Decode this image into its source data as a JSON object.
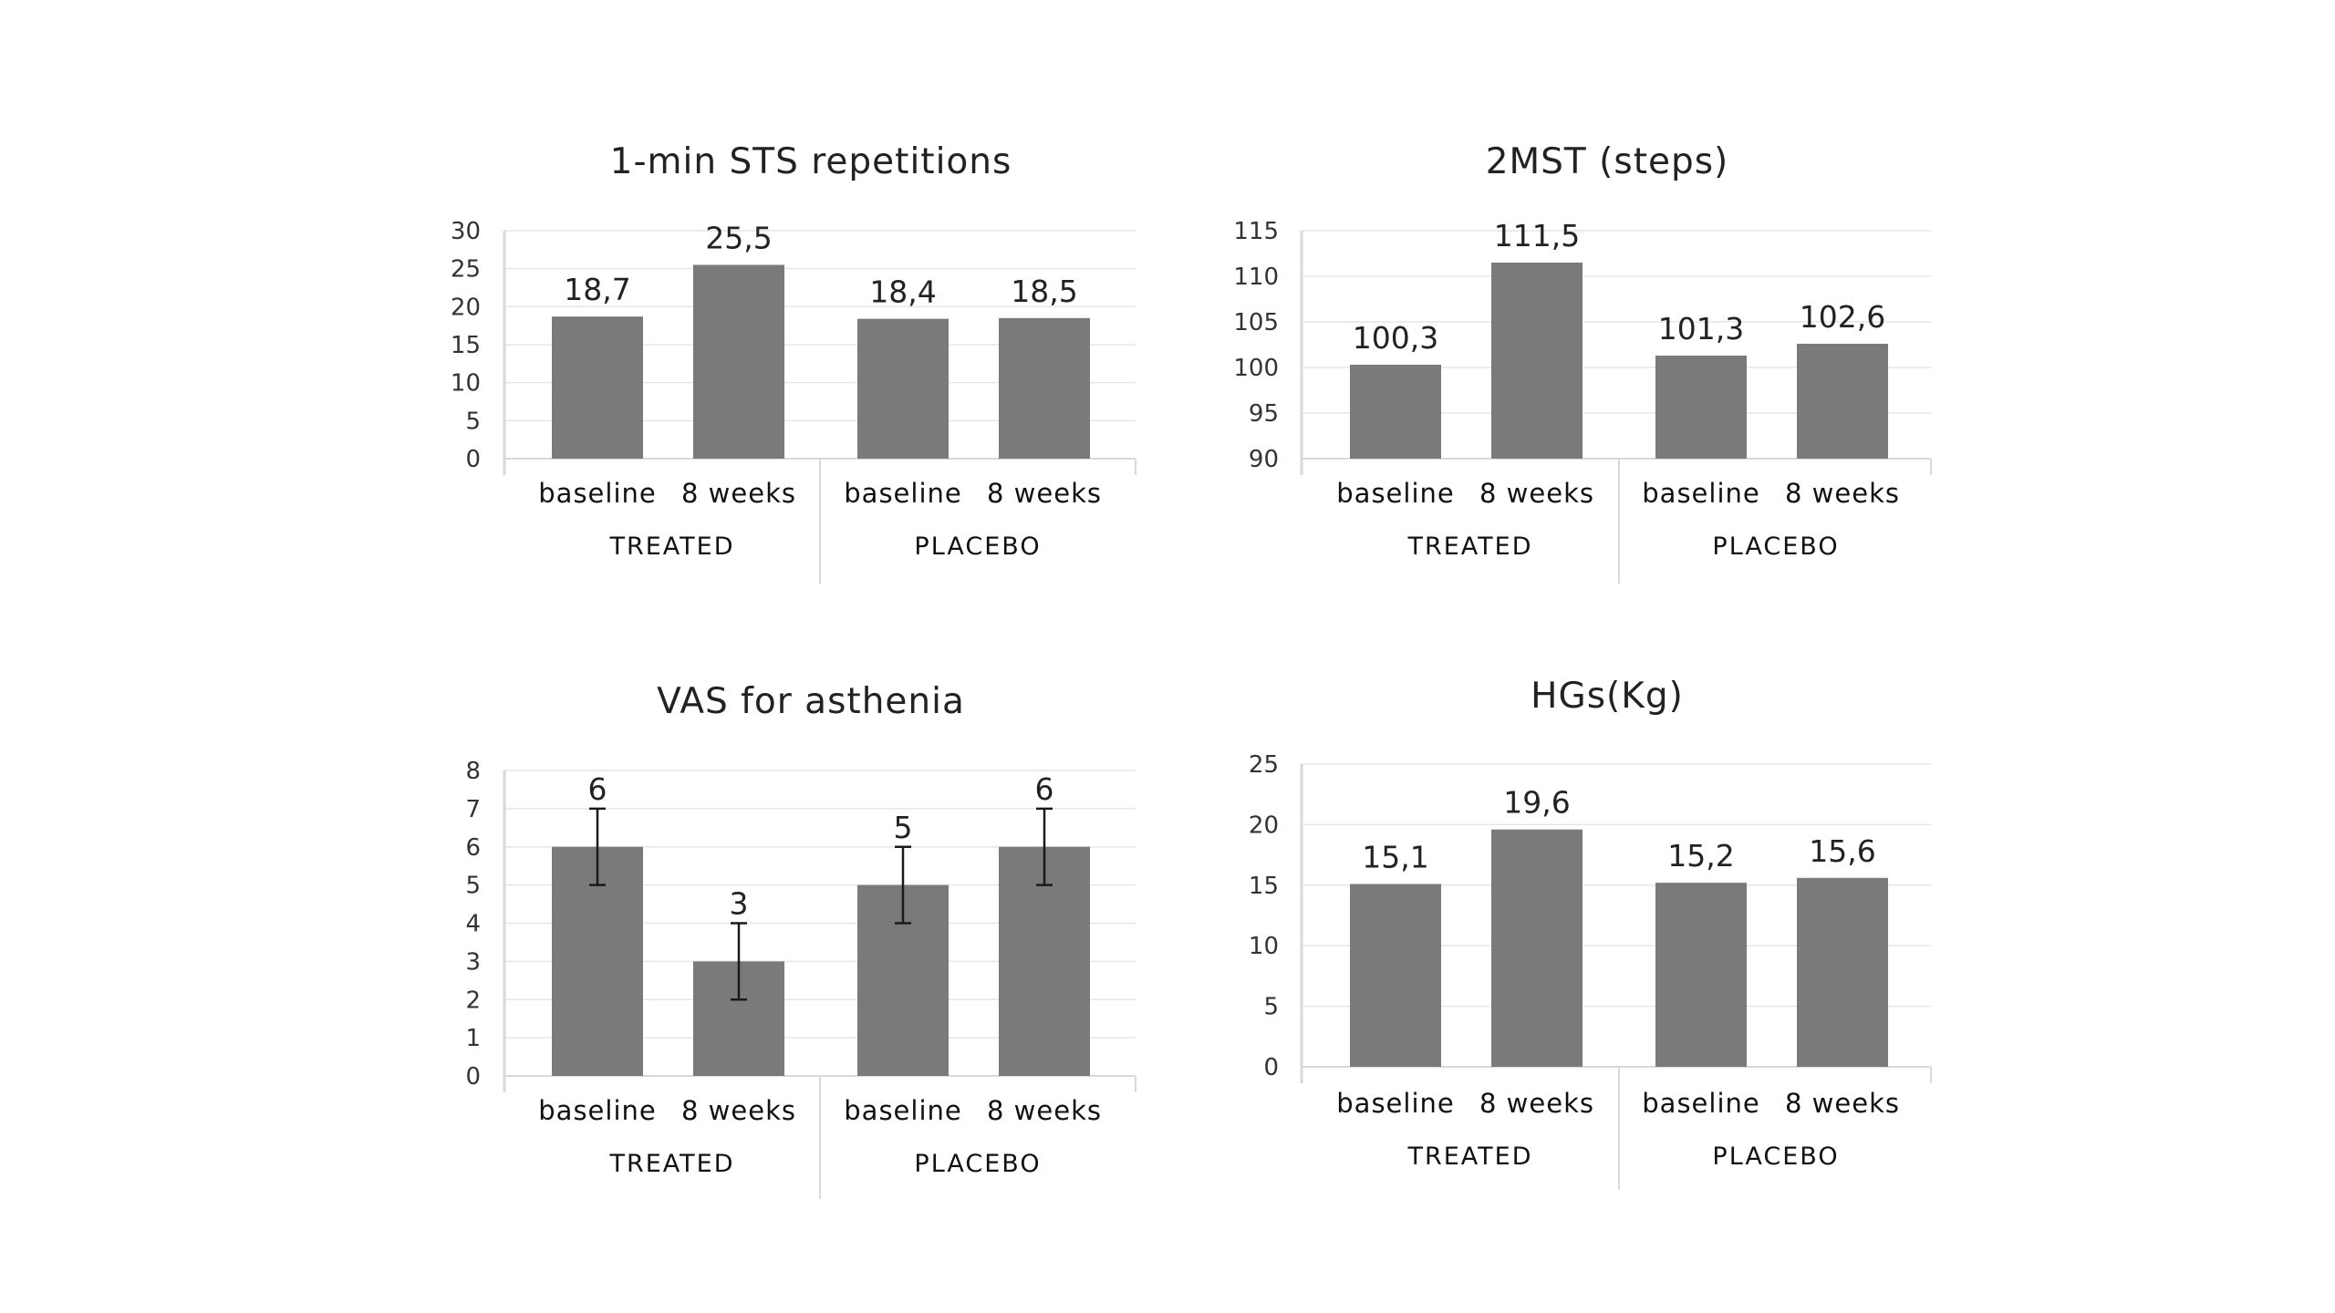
{
  "colors": {
    "bar": "#7a7a7a",
    "grid": "#e6e6e6",
    "axis": "#d9d9d9",
    "error_bar": "#1a1a1a",
    "background": "#ffffff"
  },
  "chart_data": [
    {
      "type": "bar",
      "title": "1-min STS repetitions",
      "groups": [
        "TREATED",
        "PLACEBO"
      ],
      "categories": [
        "baseline",
        "8 weeks",
        "baseline",
        "8 weeks"
      ],
      "values": [
        18.7,
        25.5,
        18.4,
        18.5
      ],
      "data_labels": [
        "18,7",
        "25,5",
        "18,4",
        "18,5"
      ],
      "ylim": [
        0,
        30
      ],
      "yticks": [
        "0",
        "5",
        "10",
        "15",
        "20",
        "25",
        "30"
      ],
      "grid": true
    },
    {
      "type": "bar",
      "title": "2MST (steps)",
      "groups": [
        "TREATED",
        "PLACEBO"
      ],
      "categories": [
        "baseline",
        "8 weeks",
        "baseline",
        "8 weeks"
      ],
      "values": [
        100.3,
        111.5,
        101.3,
        102.6
      ],
      "data_labels": [
        "100,3",
        "111,5",
        "101,3",
        "102,6"
      ],
      "ylim": [
        90,
        115
      ],
      "yticks": [
        "90",
        "95",
        "100",
        "105",
        "110",
        "115"
      ],
      "grid": true
    },
    {
      "type": "bar",
      "title": "VAS for asthenia",
      "groups": [
        "TREATED",
        "PLACEBO"
      ],
      "categories": [
        "baseline",
        "8 weeks",
        "baseline",
        "8 weeks"
      ],
      "values": [
        6,
        3,
        5,
        6
      ],
      "error": [
        1,
        1,
        1,
        1
      ],
      "data_labels": [
        "6",
        "3",
        "5",
        "6"
      ],
      "ylim": [
        0,
        8
      ],
      "yticks": [
        "0",
        "1",
        "2",
        "3",
        "4",
        "5",
        "6",
        "7",
        "8"
      ],
      "grid": true
    },
    {
      "type": "bar",
      "title": "HGs(Kg)",
      "groups": [
        "TREATED",
        "PLACEBO"
      ],
      "categories": [
        "baseline",
        "8 weeks",
        "baseline",
        "8 weeks"
      ],
      "values": [
        15.1,
        19.6,
        15.2,
        15.6
      ],
      "data_labels": [
        "15,1",
        "19,6",
        "15,2",
        "15,6"
      ],
      "ylim": [
        0,
        25
      ],
      "yticks": [
        "0",
        "5",
        "10",
        "15",
        "20",
        "25"
      ],
      "grid": true
    }
  ]
}
